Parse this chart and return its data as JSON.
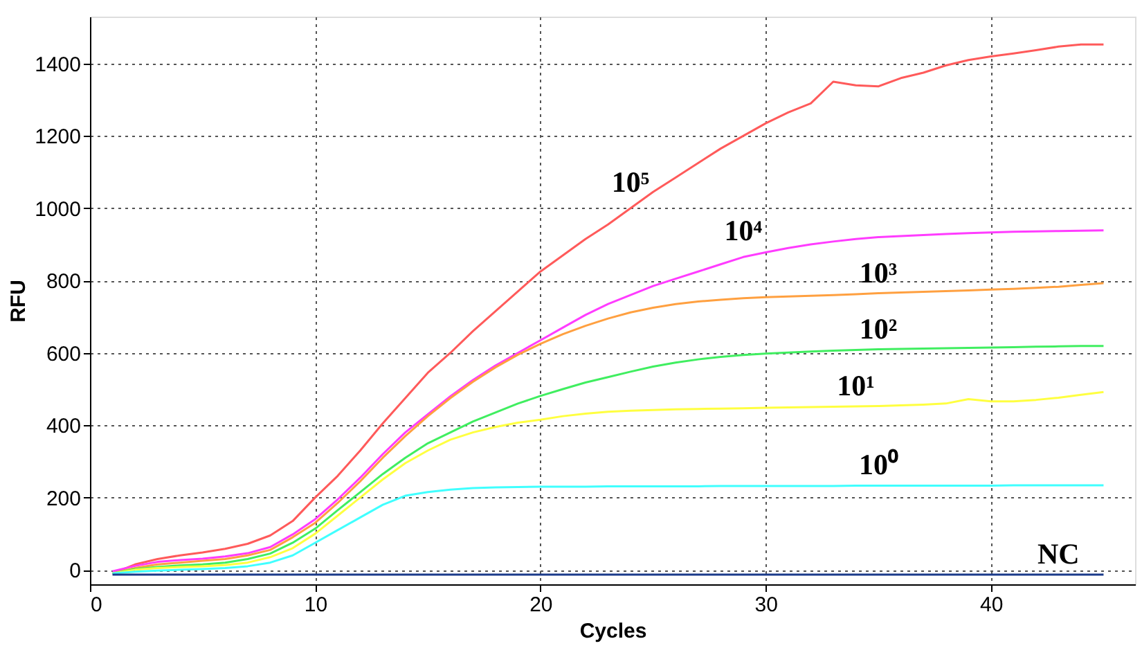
{
  "chart_data": {
    "type": "line",
    "xlabel": "Cycles",
    "ylabel": "RFU",
    "x": [
      1,
      2,
      3,
      4,
      5,
      6,
      7,
      8,
      9,
      10,
      11,
      12,
      13,
      14,
      15,
      16,
      17,
      18,
      19,
      20,
      21,
      22,
      23,
      24,
      25,
      26,
      27,
      28,
      29,
      30,
      31,
      32,
      33,
      34,
      35,
      36,
      37,
      38,
      39,
      40,
      41,
      42,
      43,
      44,
      45
    ],
    "xlim": [
      0,
      46.4
    ],
    "xticks": [
      0,
      10,
      20,
      30,
      40
    ],
    "ylim": [
      -40,
      1530
    ],
    "yticks": [
      0,
      200,
      400,
      600,
      800,
      1000,
      1200,
      1400
    ],
    "grid": true,
    "legend": false,
    "marker": "none",
    "line_style": "solid",
    "series": [
      {
        "name": "10⁵",
        "color": "#ff5a5a",
        "values": [
          -10,
          15,
          30,
          40,
          48,
          58,
          72,
          95,
          135,
          200,
          260,
          330,
          405,
          475,
          545,
          600,
          660,
          715,
          770,
          825,
          870,
          915,
          955,
          1000,
          1045,
          1085,
          1125,
          1165,
          1200,
          1235,
          1265,
          1290,
          1350,
          1340,
          1337,
          1360,
          1375,
          1395,
          1410,
          1420,
          1428,
          1437,
          1447,
          1453,
          1453
        ]
      },
      {
        "name": "10⁴",
        "color": "#ff3cff",
        "values": [
          -4,
          11,
          22,
          27,
          31,
          37,
          46,
          63,
          98,
          140,
          195,
          255,
          320,
          380,
          430,
          480,
          525,
          565,
          600,
          635,
          670,
          705,
          735,
          760,
          785,
          805,
          825,
          845,
          865,
          878,
          890,
          900,
          908,
          915,
          920,
          923,
          926,
          929,
          931,
          933,
          935,
          936,
          937,
          938,
          939
        ]
      },
      {
        "name": "10³",
        "color": "#ffa040",
        "values": [
          -10,
          5,
          15,
          20,
          25,
          30,
          40,
          55,
          90,
          130,
          185,
          245,
          310,
          370,
          425,
          475,
          520,
          560,
          595,
          625,
          652,
          675,
          695,
          712,
          725,
          735,
          742,
          747,
          751,
          754,
          756,
          758,
          760,
          762,
          765,
          767,
          769,
          771,
          773,
          775,
          777,
          780,
          783,
          788,
          793
        ]
      },
      {
        "name": "10²",
        "color": "#40ee60",
        "values": [
          -10,
          2,
          8,
          12,
          15,
          20,
          30,
          45,
          75,
          114,
          165,
          215,
          265,
          310,
          350,
          380,
          410,
          435,
          460,
          481,
          500,
          518,
          533,
          548,
          562,
          573,
          582,
          589,
          594,
          598,
          601,
          604,
          606,
          608,
          610,
          611,
          612,
          613,
          614,
          615,
          616,
          617,
          618,
          619,
          619
        ]
      },
      {
        "name": "10¹",
        "color": "#ffff40",
        "values": [
          -10,
          0,
          5,
          8,
          10,
          13,
          20,
          35,
          60,
          100,
          150,
          200,
          250,
          295,
          330,
          360,
          380,
          395,
          407,
          415,
          425,
          432,
          437,
          440,
          442,
          444,
          445,
          446,
          447,
          448,
          449,
          450,
          451,
          452,
          453,
          455,
          457,
          460,
          472,
          466,
          466,
          470,
          476,
          484,
          492
        ]
      },
      {
        "name": "10⁰",
        "color": "#40ffff",
        "values": [
          -10,
          -5,
          -2,
          0,
          2,
          5,
          10,
          20,
          40,
          75,
          110,
          145,
          180,
          205,
          215,
          222,
          226,
          228,
          229,
          230,
          230,
          230,
          231,
          231,
          231,
          231,
          231,
          232,
          232,
          232,
          232,
          232,
          232,
          233,
          233,
          233,
          233,
          233,
          233,
          233,
          234,
          234,
          234,
          234,
          234
        ]
      },
      {
        "name": "NC",
        "color": "#1a3a8a",
        "values": [
          -13,
          -13,
          -13,
          -13,
          -13,
          -13,
          -13,
          -13,
          -13,
          -13,
          -13,
          -13,
          -13,
          -13,
          -13,
          -13,
          -13,
          -13,
          -13,
          -13,
          -13,
          -13,
          -13,
          -13,
          -13,
          -13,
          -13,
          -13,
          -13,
          -13,
          -13,
          -13,
          -13,
          -13,
          -13,
          -13,
          -13,
          -13,
          -13,
          -13,
          -13,
          -13,
          -13,
          -13,
          -13
        ]
      }
    ]
  }
}
